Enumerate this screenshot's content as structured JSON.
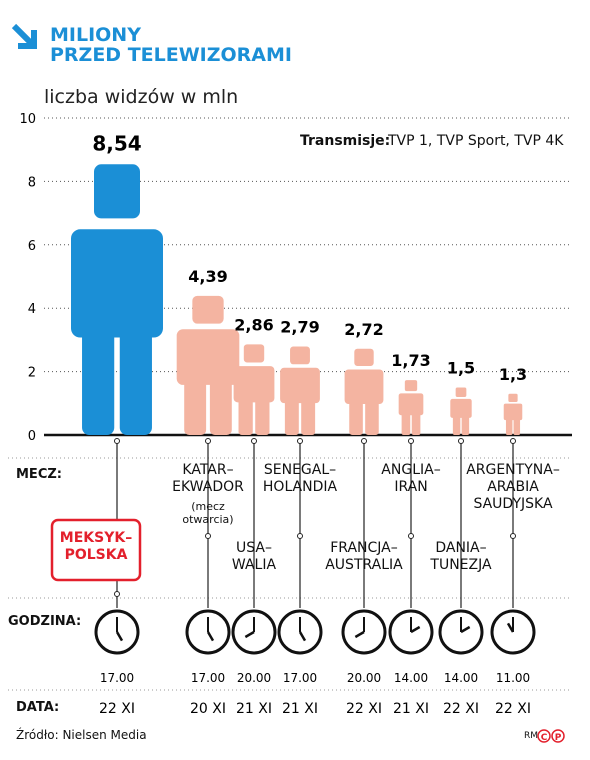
{
  "chart_data": {
    "type": "pictograph",
    "title": "MILIONY\nPRZED TELEWIZORAMI",
    "subtitle": "liczba widzów w mln",
    "note_label": "Transmisje:",
    "note": "TVP 1, TVP Sport, TVP 4K",
    "row_labels": {
      "match": "MECZ:",
      "time": "GODZINA:",
      "date": "DATA:"
    },
    "categories": [
      "MEKSYK–\nPOLSKA",
      "KATAR–\nEKWADOR",
      "USA–\nWALIA",
      "SENEGAL–\nHOLANDIA",
      "FRANCJA–\nAUSTRALIA",
      "ANGLIA–\nIRAN",
      "DANIA–\nTUNEZJA",
      "ARGENTYNA–\nARABIA\nSAUDYJSKA"
    ],
    "notes": [
      null,
      "(mecz\notwarcia)",
      null,
      null,
      null,
      null,
      null,
      null
    ],
    "values": [
      8.54,
      4.39,
      2.86,
      2.79,
      2.72,
      1.73,
      1.5,
      1.3
    ],
    "value_labels": [
      "8,54",
      "4,39",
      "2,86",
      "2,79",
      "2,72",
      "1,73",
      "1,5",
      "1,3"
    ],
    "times": [
      "17.00",
      "17.00",
      "20.00",
      "17.00",
      "20.00",
      "14.00",
      "14.00",
      "11.00"
    ],
    "dates": [
      "22 XI",
      "20 XI",
      "21 XI",
      "21 XI",
      "22 XI",
      "21 XI",
      "22 XI",
      "22 XI"
    ],
    "colors": [
      "#1b8fd6",
      "#f4b4a1",
      "#f4b4a1",
      "#f4b4a1",
      "#f4b4a1",
      "#f4b4a1",
      "#f4b4a1",
      "#f4b4a1"
    ],
    "ylim": [
      0,
      10
    ],
    "yticks": [
      0,
      2,
      4,
      6,
      8,
      10
    ],
    "grid": true,
    "source": "Źródło: Nielsen Media",
    "author": "RM",
    "logo": [
      "C",
      "P"
    ]
  }
}
